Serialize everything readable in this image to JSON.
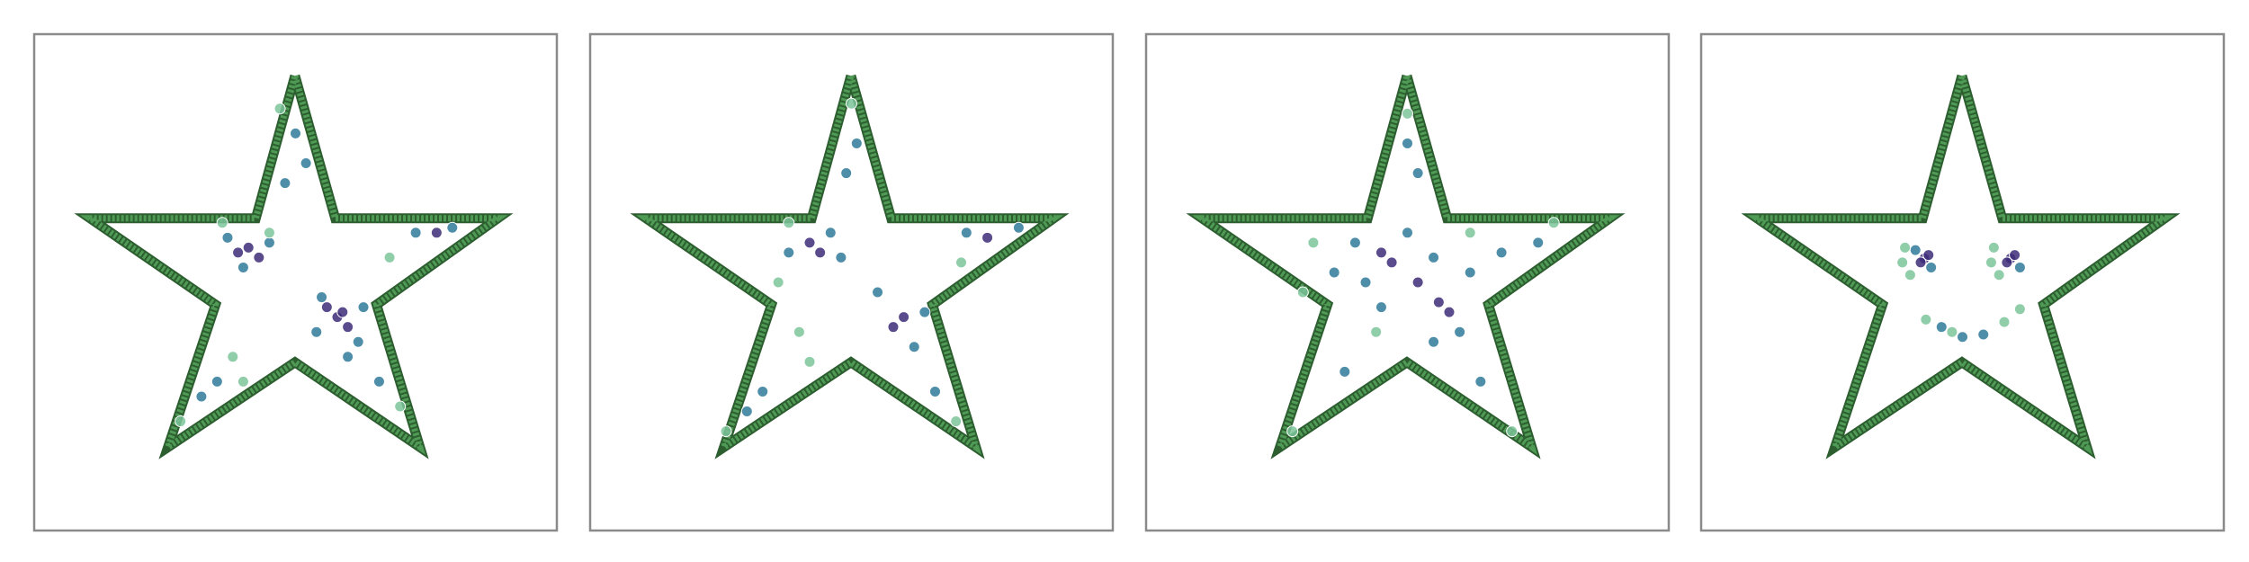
{
  "chart_data": [
    {
      "type": "scatter",
      "xlim": [
        0,
        100
      ],
      "ylim": [
        0,
        100
      ],
      "outline": {
        "color": "#4f9a55",
        "x": [
          49.9,
          57.6,
          88.7,
          65.5,
          73.8,
          49.9,
          25.6,
          34.7,
          10.7,
          42.4,
          49.9
        ],
        "y": [
          91.6,
          62.9,
          62.9,
          45.5,
          16.8,
          33.9,
          16.8,
          45.5,
          62.9,
          62.9,
          91.6
        ]
      },
      "series": [
        {
          "color": "#3d2c78",
          "x": [
            41,
            43,
            39,
            58,
            60,
            56,
            59,
            77
          ],
          "y": [
            57,
            55,
            56,
            43,
            41,
            45,
            44,
            60
          ]
        },
        {
          "color": "#2f7a9a",
          "x": [
            37,
            45,
            40,
            50,
            52,
            48,
            55,
            62,
            63,
            54,
            73,
            80,
            35,
            32,
            60,
            66
          ],
          "y": [
            59,
            58,
            53,
            80,
            74,
            70,
            47,
            38,
            45,
            40,
            60,
            61,
            30,
            27,
            35,
            30
          ]
        },
        {
          "color": "#7cc49a",
          "x": [
            47,
            36,
            68,
            40,
            28,
            45,
            70,
            38
          ],
          "y": [
            85,
            62,
            55,
            30,
            22,
            60,
            25,
            35
          ]
        }
      ]
    },
    {
      "type": "scatter",
      "xlim": [
        0,
        100
      ],
      "ylim": [
        0,
        100
      ],
      "outline": {
        "color": "#4f9a55",
        "x": [
          49.9,
          57.6,
          88.7,
          65.5,
          73.8,
          49.9,
          25.6,
          34.7,
          10.7,
          42.4,
          49.9
        ],
        "y": [
          91.6,
          62.9,
          62.9,
          45.5,
          16.8,
          33.9,
          16.8,
          45.5,
          62.9,
          62.9,
          91.6
        ]
      },
      "series": [
        {
          "color": "#3d2c78",
          "x": [
            44,
            42,
            58,
            60,
            76
          ],
          "y": [
            56,
            58,
            41,
            43,
            59
          ]
        },
        {
          "color": "#2f7a9a",
          "x": [
            38,
            48,
            51,
            49,
            55,
            62,
            64,
            72,
            82,
            33,
            30,
            66,
            46
          ],
          "y": [
            56,
            55,
            78,
            72,
            48,
            37,
            44,
            60,
            61,
            28,
            24,
            28,
            60
          ]
        },
        {
          "color": "#7cc49a",
          "x": [
            36,
            50,
            40,
            26,
            70,
            38,
            42,
            71
          ],
          "y": [
            50,
            86,
            40,
            20,
            22,
            62,
            34,
            54
          ]
        }
      ]
    },
    {
      "type": "scatter",
      "xlim": [
        0,
        100
      ],
      "ylim": [
        0,
        100
      ],
      "outline": {
        "color": "#4f9a55",
        "x": [
          49.9,
          57.6,
          88.7,
          65.5,
          73.8,
          49.9,
          25.6,
          34.7,
          10.7,
          42.4,
          49.9
        ],
        "y": [
          91.6,
          62.9,
          62.9,
          45.5,
          16.8,
          33.9,
          16.8,
          45.5,
          62.9,
          62.9,
          91.6
        ]
      },
      "series": [
        {
          "color": "#3d2c78",
          "x": [
            45,
            47,
            56,
            58,
            52
          ],
          "y": [
            56,
            54,
            46,
            44,
            50
          ]
        },
        {
          "color": "#2f7a9a",
          "x": [
            40,
            50,
            55,
            62,
            60,
            45,
            42,
            52,
            50,
            68,
            75,
            36,
            64,
            38,
            55
          ],
          "y": [
            58,
            60,
            55,
            52,
            40,
            45,
            50,
            72,
            78,
            56,
            58,
            52,
            30,
            32,
            38
          ]
        },
        {
          "color": "#7cc49a",
          "x": [
            30,
            32,
            78,
            28,
            70,
            50,
            62,
            44
          ],
          "y": [
            48,
            58,
            62,
            20,
            20,
            84,
            60,
            40
          ]
        }
      ]
    },
    {
      "type": "scatter",
      "xlim": [
        0,
        100
      ],
      "ylim": [
        0,
        100
      ],
      "outline": {
        "color": "#4f9a55",
        "x": [
          49.9,
          57.6,
          88.7,
          65.5,
          73.8,
          49.9,
          25.6,
          34.7,
          10.7,
          42.4,
          49.9
        ],
        "y": [
          91.6,
          62.9,
          62.9,
          45.5,
          16.8,
          33.9,
          16.8,
          45.5,
          62.9,
          62.9,
          91.6
        ]
      },
      "series": [
        {
          "color": "#3d2c78",
          "x": [
            42.7,
            43.5,
            42,
            59.2,
            60,
            58.5
          ],
          "y": [
            54.8,
            55.5,
            54,
            54.8,
            55.5,
            54
          ]
        },
        {
          "color": "#2f7a9a",
          "x": [
            44,
            61,
            46,
            50,
            54,
            41
          ],
          "y": [
            53,
            53,
            41,
            39,
            39.5,
            56.5
          ]
        },
        {
          "color": "#7cc49a",
          "x": [
            39,
            38.5,
            40,
            56,
            55.5,
            57,
            43,
            58,
            61,
            48
          ],
          "y": [
            57,
            54,
            51.5,
            57,
            54,
            51.5,
            42.5,
            42,
            44.6,
            40
          ]
        }
      ]
    }
  ]
}
